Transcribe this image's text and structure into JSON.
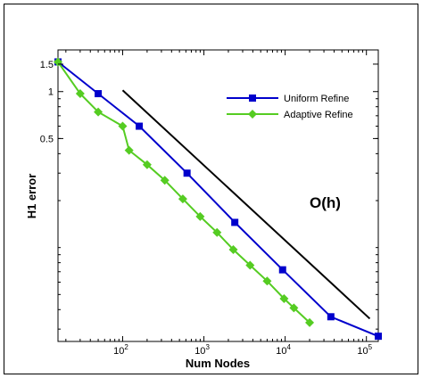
{
  "chart_data": {
    "type": "line",
    "title": "",
    "xlabel": "Num Nodes",
    "ylabel": "H1 error",
    "xscale": "log",
    "yscale": "log",
    "xlim": [
      16,
      140000
    ],
    "ylim": [
      0.025,
      1.85
    ],
    "x_ticks": [
      {
        "value": 100,
        "base": "10",
        "exp": "2"
      },
      {
        "value": 1000,
        "base": "10",
        "exp": "3"
      },
      {
        "value": 10000,
        "base": "10",
        "exp": "4"
      },
      {
        "value": 100000,
        "base": "10",
        "exp": "5"
      }
    ],
    "y_ticks": [
      {
        "value": 1.5,
        "label": "1.5"
      },
      {
        "value": 1,
        "label": "1"
      },
      {
        "value": 0.5,
        "label": "0.5"
      }
    ],
    "grid": false,
    "legend_position": "top-right",
    "series": [
      {
        "name": "Uniform Refine",
        "color": "#0000cc",
        "marker": "square",
        "x": [
          16,
          50,
          160,
          620,
          2400,
          9300,
          36500,
          140000
        ],
        "y": [
          1.55,
          0.97,
          0.6,
          0.3,
          0.145,
          0.072,
          0.036,
          0.027
        ]
      },
      {
        "name": "Adaptive Refine",
        "color": "#55cc22",
        "marker": "diamond",
        "x": [
          16,
          30,
          50,
          100,
          120,
          200,
          330,
          550,
          900,
          1450,
          2300,
          3700,
          6000,
          9700,
          12800,
          20000
        ],
        "y": [
          1.55,
          0.97,
          0.74,
          0.6,
          0.42,
          0.34,
          0.27,
          0.205,
          0.158,
          0.125,
          0.097,
          0.077,
          0.061,
          0.047,
          0.041,
          0.033
        ]
      }
    ],
    "reference_line": {
      "color": "#000000",
      "x": [
        100,
        110000
      ],
      "y": [
        1.02,
        0.035
      ]
    },
    "annotations": [
      {
        "text": "O(h)",
        "x": 20000,
        "y": 0.18
      }
    ]
  }
}
